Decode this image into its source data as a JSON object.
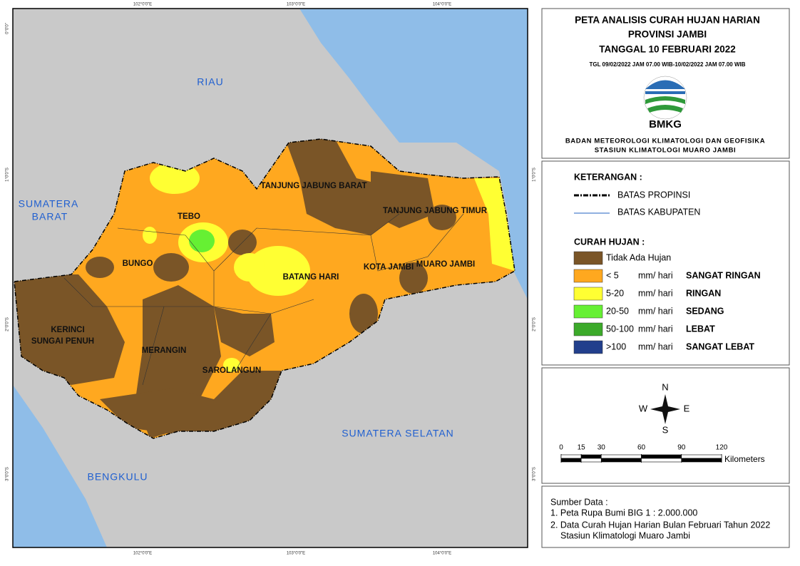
{
  "map": {
    "regions": [
      "RIAU",
      "SUMATERA",
      "BARAT",
      "BENGKULU",
      "SUMATERA SELATAN"
    ],
    "regencies": [
      "TEBO",
      "BUNGO",
      "TANJUNG JABUNG BARAT",
      "TANJUNG JABUNG TIMUR",
      "BATANG HARI",
      "KOTA JAMBI",
      "MUARO JAMBI",
      "KERINCI",
      "SUNGAI PENUH",
      "MERANGIN",
      "SAROLANGUN"
    ],
    "longitudes": [
      "102°0'0\"E",
      "103°0'0\"E",
      "104°0'0\"E"
    ],
    "latitudes": [
      "0°0'0\"",
      "1°0'0\"S",
      "2°0'0\"S",
      "3°0'0\"S"
    ]
  },
  "header": {
    "lines": [
      "PETA ANALISIS CURAH HUJAN HARIAN",
      "PROVINSI JAMBI",
      "TANGGAL 10 FEBRUARI 2022"
    ],
    "period": "TGL 09/02/2022 JAM 07.00 WIB-10/02/2022 JAM 07.00 WIB",
    "logo": "BMKG",
    "agency": [
      "BADAN METEOROLOGI KLIMATOLOGI DAN GEOFISIKA",
      "STASIUN KLIMATOLOGI MUARO JAMBI"
    ]
  },
  "legend": {
    "heading": "KETERANGAN :",
    "boundaries": [
      "BATAS PROPINSI",
      "BATAS KABUPATEN"
    ],
    "rainfall_heading": "CURAH HUJAN :",
    "classes": [
      {
        "range": "Tidak Ada Hujan",
        "color": "#7a5527"
      },
      {
        "range": "< 5",
        "unit": "mm/ hari",
        "category": "SANGAT RINGAN",
        "color": "#ffa81f"
      },
      {
        "range": "5-20",
        "unit": "mm/ hari",
        "category": "RINGAN",
        "color": "#ffff33"
      },
      {
        "range": "20-50",
        "unit": "mm/ hari",
        "category": "SEDANG",
        "color": "#66f033"
      },
      {
        "range": "50-100",
        "unit": "mm/ hari",
        "category": "LEBAT",
        "color": "#3caa2a"
      },
      {
        "range": ">100",
        "unit": "mm/ hari",
        "category": "SANGAT LEBAT",
        "color": "#223f8c"
      }
    ]
  },
  "compass": [
    "N",
    "W",
    "E",
    "S"
  ],
  "scale": {
    "ticks": [
      0,
      15,
      30,
      60,
      90,
      120
    ],
    "unit": "Kilometers"
  },
  "sources": {
    "heading": "Sumber Data :",
    "items": [
      "1. Peta Rupa Bumi BIG 1 : 2.000.000",
      "2. Data Curah Hujan Harian Bulan Februari Tahun 2022",
      "Stasiun Klimatologi Muaro Jambi"
    ]
  }
}
